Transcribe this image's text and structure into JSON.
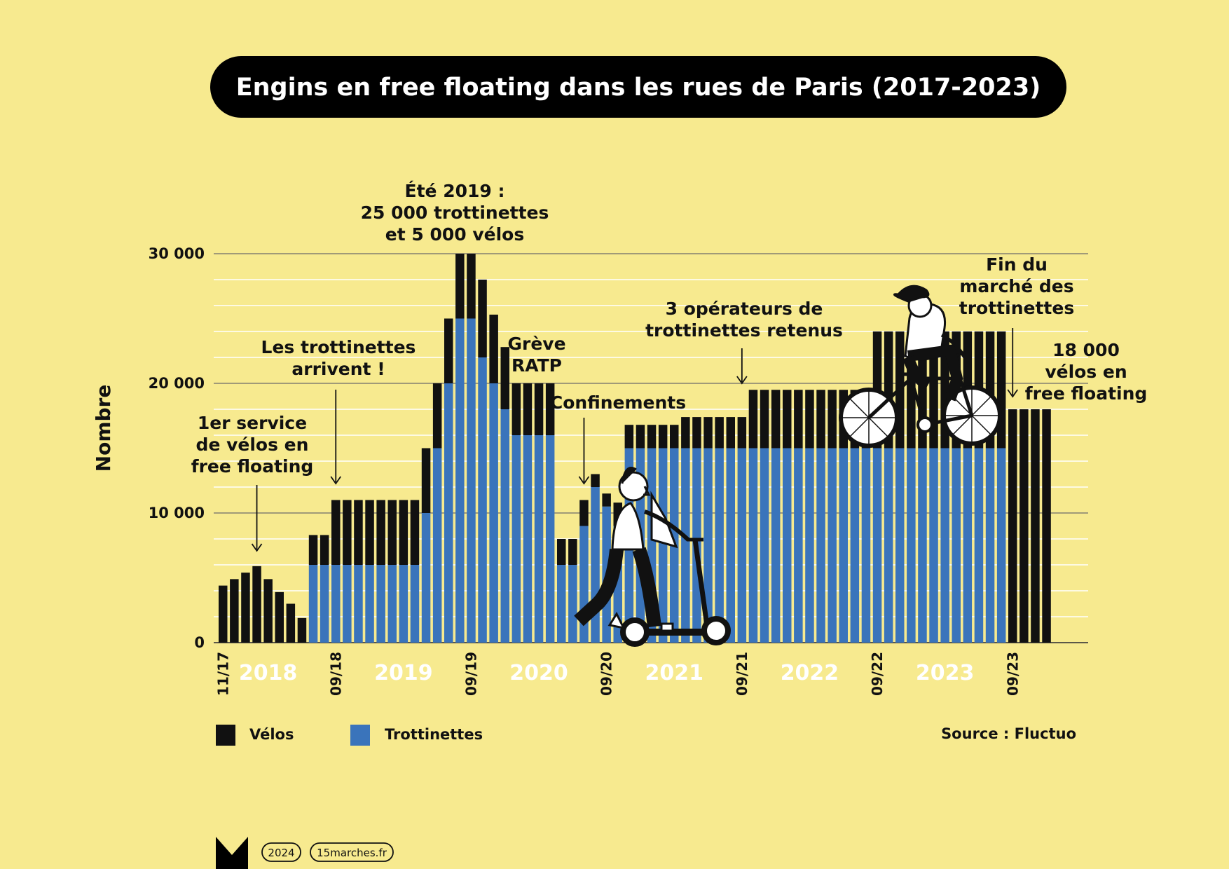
{
  "colors": {
    "background": "#F7EA8F",
    "velos": "#111111",
    "trottinettes": "#3A74BB",
    "title_bg": "#000000"
  },
  "chart_data": {
    "type": "bar",
    "stacked": true,
    "title": "Engins en free floating dans les rues de Paris (2017-2023)",
    "ylabel": "Nombre",
    "ylim": [
      0,
      30000
    ],
    "y_ticks": [
      {
        "value": 0,
        "label": "0"
      },
      {
        "value": 10000,
        "label": "10 000"
      },
      {
        "value": 20000,
        "label": "20 000"
      },
      {
        "value": 30000,
        "label": "30 000"
      }
    ],
    "date_ticks": [
      {
        "index": 0,
        "label": "11/17"
      },
      {
        "index": 10,
        "label": "09/18"
      },
      {
        "index": 22,
        "label": "09/19"
      },
      {
        "index": 34,
        "label": "09/20"
      },
      {
        "index": 46,
        "label": "09/21"
      },
      {
        "index": 58,
        "label": "09/22"
      },
      {
        "index": 70,
        "label": "09/23"
      }
    ],
    "year_labels": [
      {
        "from": 2,
        "to": 6,
        "label": "2018"
      },
      {
        "from": 14,
        "to": 18,
        "label": "2019"
      },
      {
        "from": 26,
        "to": 30,
        "label": "2020"
      },
      {
        "from": 38,
        "to": 42,
        "label": "2021"
      },
      {
        "from": 50,
        "to": 54,
        "label": "2022"
      },
      {
        "from": 62,
        "to": 66,
        "label": "2023"
      }
    ],
    "series": [
      {
        "name": "Trottinettes",
        "values": [
          0,
          0,
          0,
          0,
          0,
          0,
          0,
          0,
          6000,
          6000,
          6000,
          6000,
          6000,
          6000,
          6000,
          6000,
          6000,
          6000,
          10000,
          15000,
          20000,
          25000,
          25000,
          22000,
          20000,
          18000,
          16000,
          16000,
          16000,
          16000,
          6000,
          6000,
          9000,
          12000,
          10500,
          9000,
          15000,
          15000,
          15000,
          15000,
          15000,
          15000,
          15000,
          15000,
          15000,
          15000,
          15000,
          15000,
          15000,
          15000,
          15000,
          15000,
          15000,
          15000,
          15000,
          15000,
          15000,
          15000,
          15000,
          15000,
          15000,
          15000,
          15000,
          15000,
          15000,
          15000,
          15000,
          15000,
          15000,
          15000,
          0,
          0,
          0,
          0
        ]
      },
      {
        "name": "Vélos",
        "values": [
          4400,
          4900,
          5400,
          5900,
          4900,
          3900,
          3000,
          1900,
          2300,
          2300,
          5000,
          5000,
          5000,
          5000,
          5000,
          5000,
          5000,
          5000,
          5000,
          5000,
          5000,
          5000,
          5000,
          6000,
          5300,
          4800,
          4000,
          4000,
          4000,
          4000,
          2000,
          2000,
          2000,
          1000,
          1000,
          1800,
          1800,
          1800,
          1800,
          1800,
          1800,
          2400,
          2400,
          2400,
          2400,
          2400,
          2400,
          4500,
          4500,
          4500,
          4500,
          4500,
          4500,
          4500,
          4500,
          4500,
          4500,
          4500,
          9000,
          9000,
          9000,
          9000,
          9000,
          9000,
          9000,
          9000,
          9000,
          9000,
          9000,
          9000,
          18000,
          18000,
          18000,
          18000
        ]
      }
    ],
    "legend": [
      {
        "name": "Vélos",
        "color": "#111111"
      },
      {
        "name": "Trottinettes",
        "color": "#3A74BB"
      }
    ],
    "annotations": [
      {
        "lines": [
          "1er service",
          "de vélos en",
          "free floating"
        ],
        "bar": 3
      },
      {
        "lines": [
          "Les trottinettes",
          "arrivent !"
        ],
        "bar": 10
      },
      {
        "lines": [
          "Été 2019 :",
          "25 000 trottinettes",
          "et 5 000 vélos"
        ],
        "bar": 22
      },
      {
        "lines": [
          "Grève",
          "RATP"
        ],
        "bar": 28
      },
      {
        "lines": [
          "Confinements"
        ],
        "bar": 32
      },
      {
        "lines": [
          "3 opérateurs de",
          "trottinettes retenus"
        ],
        "bar": 46
      },
      {
        "lines": [
          "Fin du",
          "marché des",
          "trottinettes"
        ],
        "bar": 70
      },
      {
        "lines": [
          "18 000",
          "vélos en",
          "free floating"
        ],
        "bar": 72
      }
    ],
    "source": "Source : Fluctuo"
  },
  "footer": {
    "logo": "M-logo",
    "year": "2024",
    "site": "15marches.fr"
  }
}
